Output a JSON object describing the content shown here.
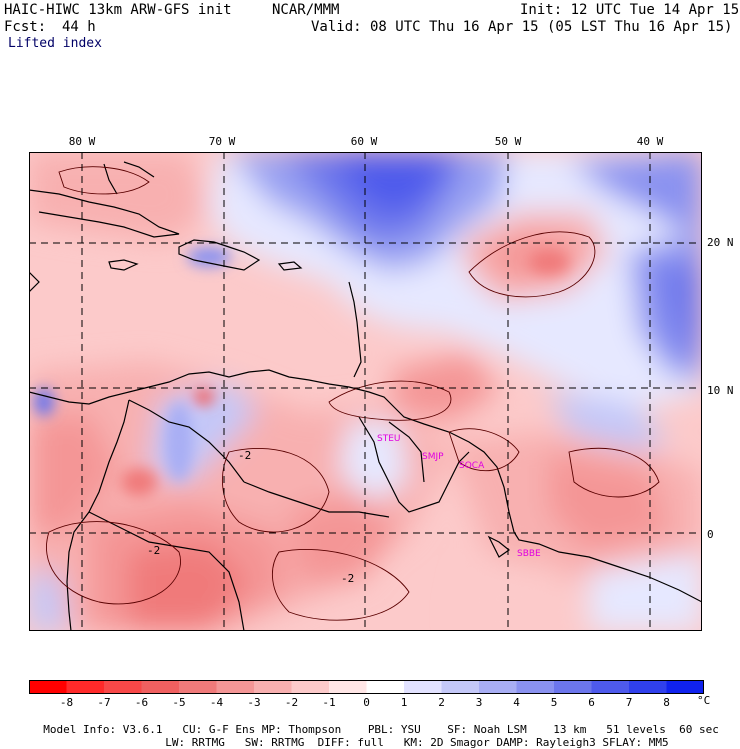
{
  "header": {
    "title": "HAIC-HIWC 13km ARW-GFS init",
    "org": "NCAR/MMM",
    "init": "Init: 12 UTC Tue 14 Apr 15",
    "fcst_label": "Fcst:",
    "fcst_value": "44 h",
    "valid": "Valid: 08 UTC Thu 16 Apr 15 (05 LST Thu 16 Apr 15)",
    "field": "Lifted index"
  },
  "map": {
    "lon_labels": [
      "80 W",
      "70 W",
      "60 W",
      "50 W",
      "40 W"
    ],
    "lat_labels": [
      "20 N",
      "10 N",
      "0"
    ],
    "stations": [
      "STEU",
      "SMJP",
      "SOCA",
      "SBBE"
    ],
    "station_color": "#e000e0",
    "contour_labels": [
      "-2",
      "-2",
      "-2"
    ]
  },
  "colorbar": {
    "ticks": [
      "-8",
      "-7",
      "-6",
      "-5",
      "-4",
      "-3",
      "-2",
      "-1",
      "0",
      "1",
      "2",
      "3",
      "4",
      "5",
      "6",
      "7",
      "8"
    ],
    "unit": "°C",
    "colors": [
      "#ff0000",
      "#ff2a2a",
      "#f84848",
      "#f06060",
      "#f07a7a",
      "#f49696",
      "#f8b0b0",
      "#fccaca",
      "#ffe6e6",
      "#ffffff",
      "#e2e2ff",
      "#c4c8f8",
      "#a8aef4",
      "#8a92f0",
      "#6c76ec",
      "#4e5aec",
      "#3040ec",
      "#1022ee"
    ]
  },
  "footer": {
    "line1": [
      "Model Info: V3.6.1",
      "CU: G-F Ens",
      "MP: Thompson",
      "PBL: YSU",
      "SF: Noah LSM",
      "13 km",
      "51 levels",
      "60 sec"
    ],
    "line2": [
      "LW: RRTMG",
      "SW: RRTMG",
      "DIFF: full",
      "KM: 2D Smagor",
      "DAMP: Rayleigh3",
      "SFLAY: MM5"
    ]
  }
}
